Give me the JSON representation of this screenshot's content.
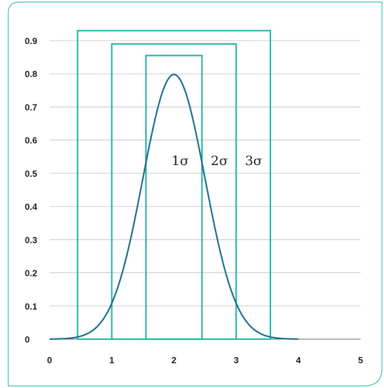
{
  "chart_data": {
    "type": "line",
    "title": "",
    "xlabel": "",
    "ylabel": "",
    "xlim": [
      0,
      5
    ],
    "ylim": [
      0,
      0.9
    ],
    "x_ticks": [
      "0",
      "1",
      "2",
      "3",
      "4",
      "5"
    ],
    "y_ticks": [
      "0",
      "0.1",
      "0.2",
      "0.3",
      "0.4",
      "0.5",
      "0.6",
      "0.7",
      "0.8",
      "0.9"
    ],
    "grid": "horizontal",
    "series": [
      {
        "mean": 2,
        "sd": 0.5,
        "x_range": [
          0,
          4
        ],
        "peak": 0.798,
        "color": "#1a6e8e"
      }
    ],
    "sigma_boxes": [
      {
        "label": "1σ",
        "x_range": [
          1.55,
          2.45
        ],
        "top": 0.855
      },
      {
        "label": "2σ",
        "x_range": [
          1.0,
          3.0
        ],
        "top": 0.89
      },
      {
        "label": "3σ",
        "x_range": [
          0.45,
          3.55
        ],
        "top": 0.93
      }
    ],
    "box_color": "#2bb5aa",
    "frame_color": "#3fbfb3"
  }
}
